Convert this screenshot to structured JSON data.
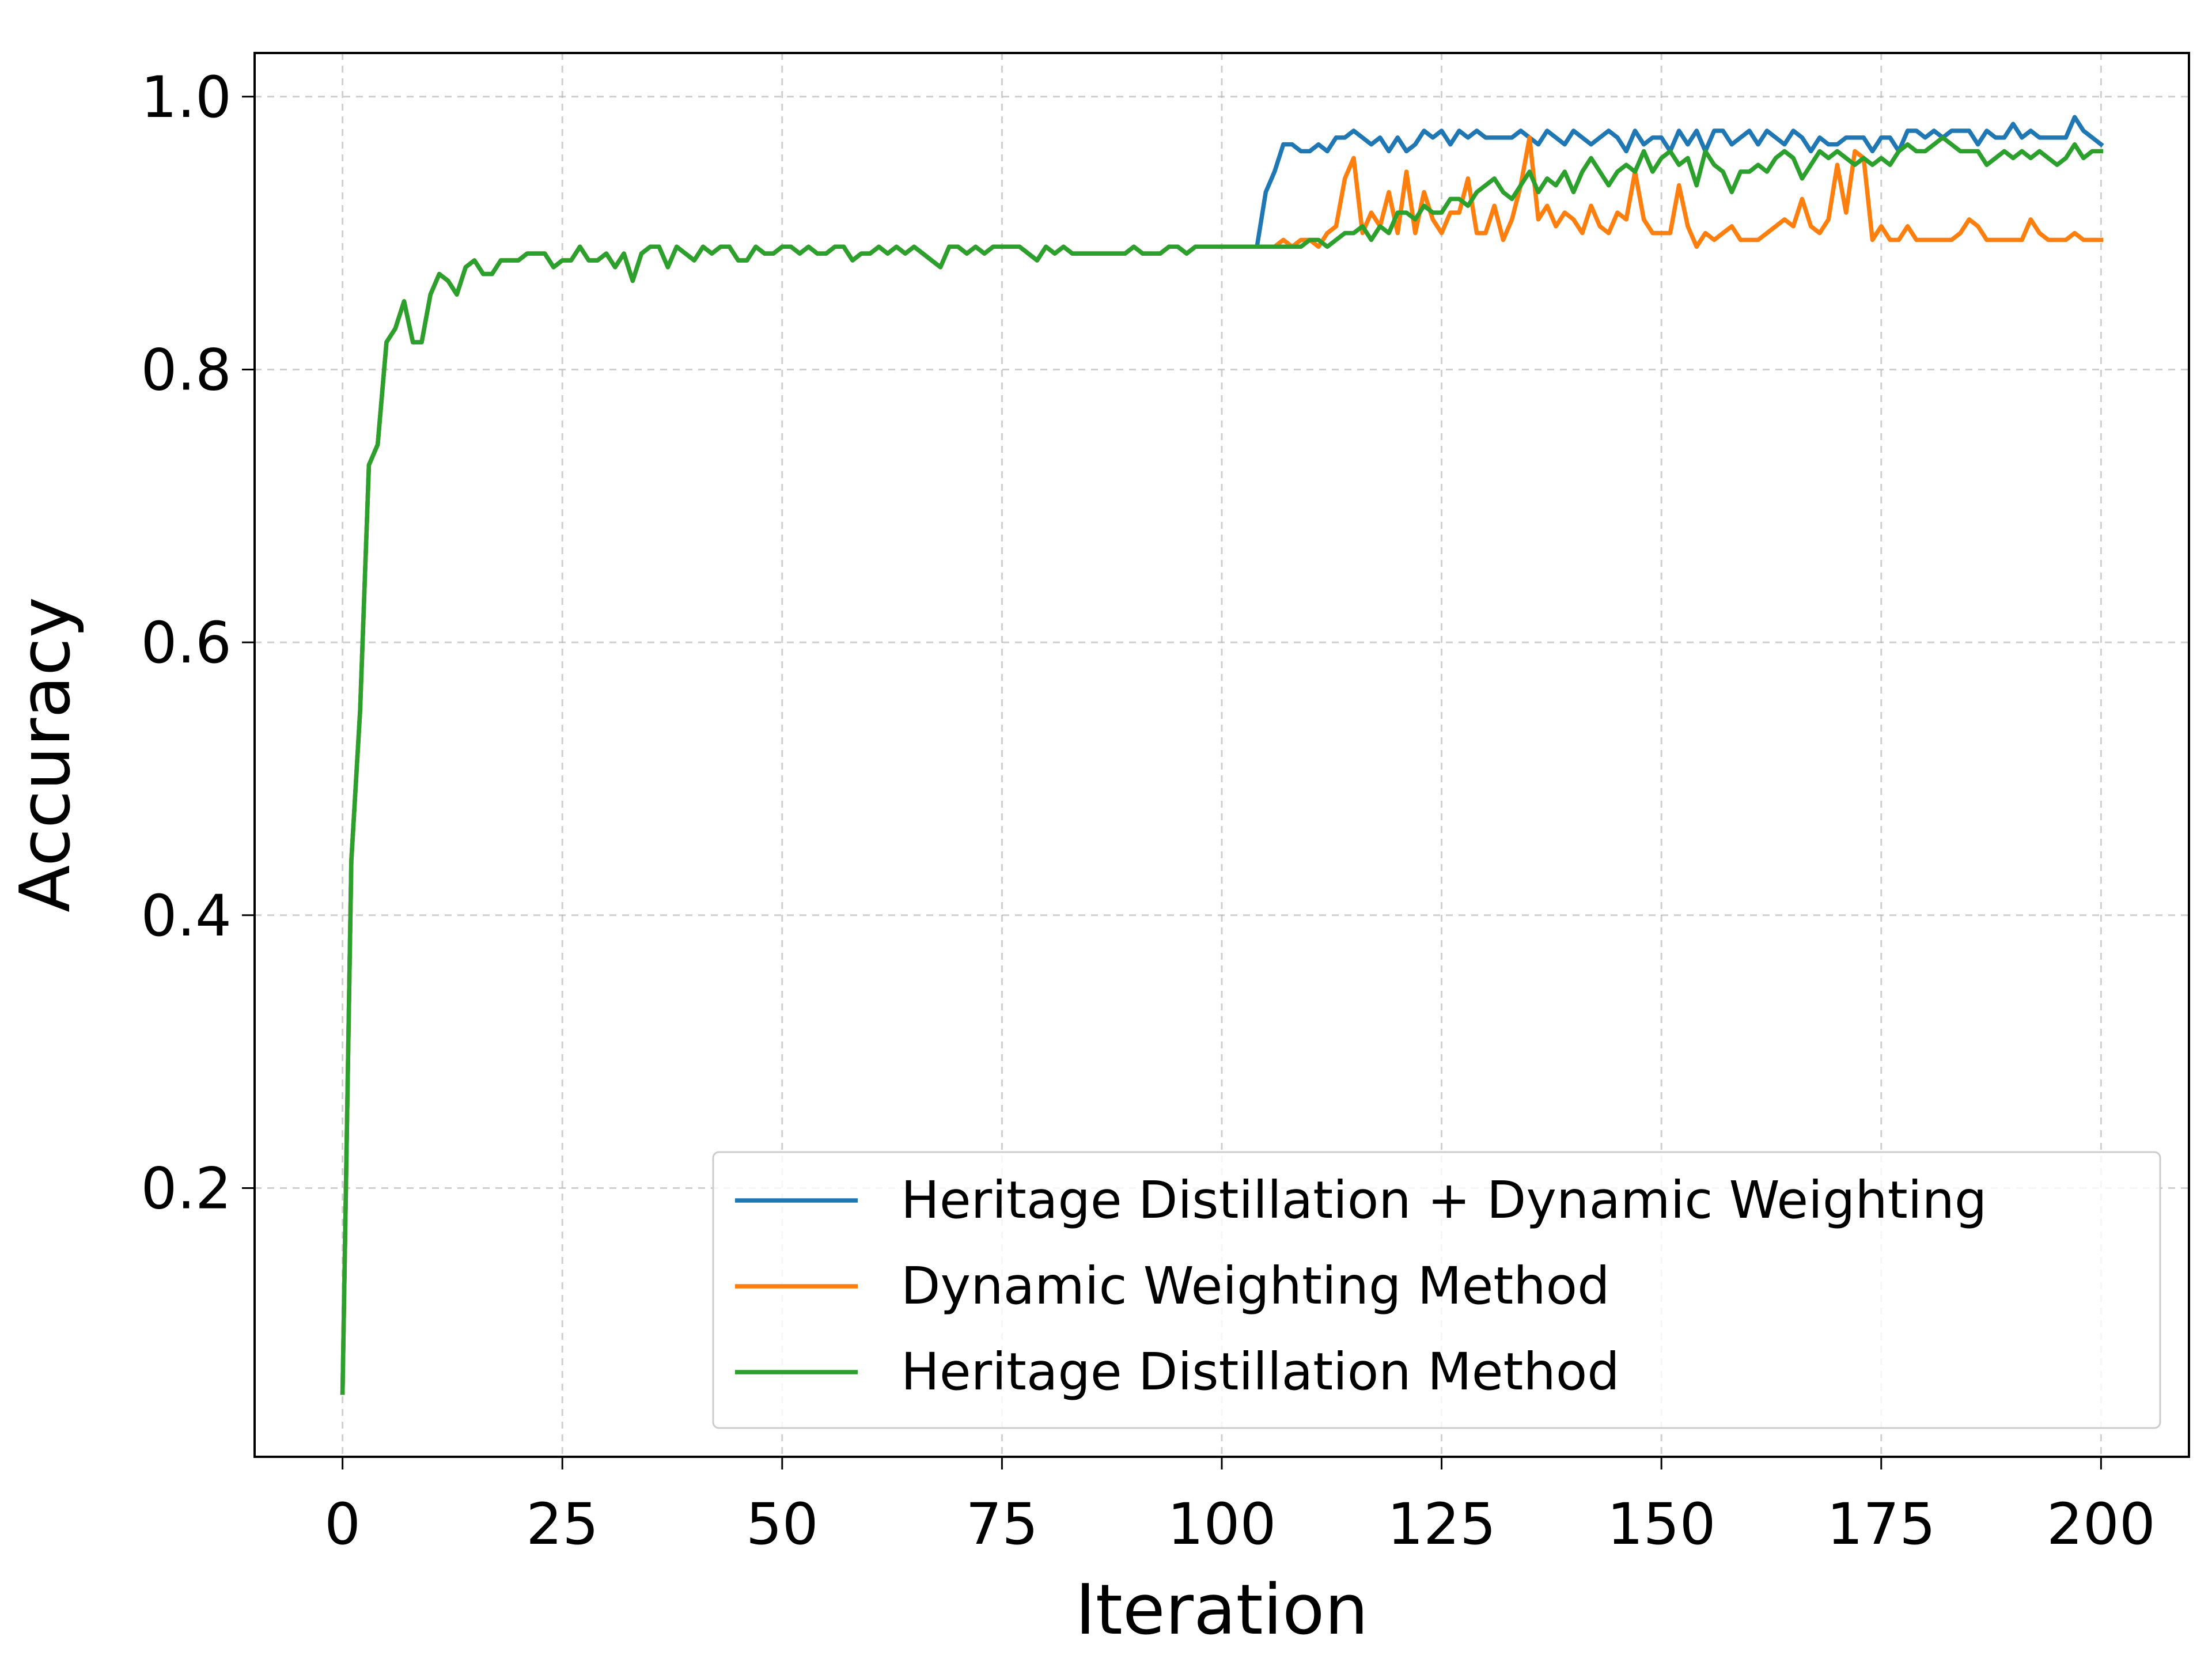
{
  "chart_data": {
    "type": "line",
    "xlabel": "Iteration",
    "ylabel": "Accuracy",
    "xlim": [
      -10,
      210
    ],
    "ylim": [
      0.003,
      1.032
    ],
    "xticks": [
      0,
      25,
      50,
      75,
      100,
      125,
      150,
      175,
      200
    ],
    "yticks": [
      0.2,
      0.4,
      0.6,
      0.8,
      {
        "value": 1,
        "label": "1.0"
      }
    ],
    "grid": true,
    "legend": "lower right",
    "x": [
      0,
      1,
      2,
      3,
      4,
      5,
      6,
      7,
      8,
      9,
      10,
      11,
      12,
      13,
      14,
      15,
      16,
      17,
      18,
      19,
      20,
      21,
      22,
      23,
      24,
      25,
      26,
      27,
      28,
      29,
      30,
      31,
      32,
      33,
      34,
      35,
      36,
      37,
      38,
      39,
      40,
      41,
      42,
      43,
      44,
      45,
      46,
      47,
      48,
      49,
      50,
      51,
      52,
      53,
      54,
      55,
      56,
      57,
      58,
      59,
      60,
      61,
      62,
      63,
      64,
      65,
      66,
      67,
      68,
      69,
      70,
      71,
      72,
      73,
      74,
      75,
      76,
      77,
      78,
      79,
      80,
      81,
      82,
      83,
      84,
      85,
      86,
      87,
      88,
      89,
      90,
      91,
      92,
      93,
      94,
      95,
      96,
      97,
      98,
      99,
      100,
      101,
      102,
      103,
      104,
      105,
      106,
      107,
      108,
      109,
      110,
      111,
      112,
      113,
      114,
      115,
      116,
      117,
      118,
      119,
      120,
      121,
      122,
      123,
      124,
      125,
      126,
      127,
      128,
      129,
      130,
      131,
      132,
      133,
      134,
      135,
      136,
      137,
      138,
      139,
      140,
      141,
      142,
      143,
      144,
      145,
      146,
      147,
      148,
      149,
      150,
      151,
      152,
      153,
      154,
      155,
      156,
      157,
      158,
      159,
      160,
      161,
      162,
      163,
      164,
      165,
      166,
      167,
      168,
      169,
      170,
      171,
      172,
      173,
      174,
      175,
      176,
      177,
      178,
      179,
      180,
      181,
      182,
      183,
      184,
      185,
      186,
      187,
      188,
      189,
      190,
      191,
      192,
      193,
      194,
      195,
      196,
      197,
      198,
      199,
      200
    ],
    "series": [
      {
        "name": "Heritage Distillation + Dynamic Weighting",
        "color": "#1f77b4",
        "values": [
          0.05,
          0.44,
          0.55,
          0.73,
          0.745,
          0.82,
          0.83,
          0.85,
          0.82,
          0.82,
          0.855,
          0.87,
          0.865,
          0.855,
          0.875,
          0.88,
          0.87,
          0.87,
          0.88,
          0.88,
          0.88,
          0.885,
          0.885,
          0.885,
          0.875,
          0.88,
          0.88,
          0.89,
          0.88,
          0.88,
          0.885,
          0.875,
          0.885,
          0.865,
          0.885,
          0.89,
          0.89,
          0.875,
          0.89,
          0.885,
          0.88,
          0.89,
          0.885,
          0.89,
          0.89,
          0.88,
          0.88,
          0.89,
          0.885,
          0.885,
          0.89,
          0.89,
          0.885,
          0.89,
          0.885,
          0.885,
          0.89,
          0.89,
          0.88,
          0.885,
          0.885,
          0.89,
          0.885,
          0.89,
          0.885,
          0.89,
          0.885,
          0.88,
          0.875,
          0.89,
          0.89,
          0.885,
          0.89,
          0.885,
          0.89,
          0.89,
          0.89,
          0.89,
          0.885,
          0.88,
          0.89,
          0.885,
          0.89,
          0.885,
          0.885,
          0.885,
          0.885,
          0.885,
          0.885,
          0.885,
          0.89,
          0.885,
          0.885,
          0.885,
          0.89,
          0.89,
          0.885,
          0.89,
          0.89,
          0.89,
          0.89,
          0.89,
          0.89,
          0.89,
          0.89,
          0.93,
          0.945,
          0.965,
          0.965,
          0.96,
          0.96,
          0.965,
          0.96,
          0.97,
          0.97,
          0.975,
          0.97,
          0.965,
          0.97,
          0.96,
          0.97,
          0.96,
          0.965,
          0.975,
          0.97,
          0.975,
          0.965,
          0.975,
          0.97,
          0.975,
          0.97,
          0.97,
          0.97,
          0.97,
          0.975,
          0.97,
          0.965,
          0.975,
          0.97,
          0.965,
          0.975,
          0.97,
          0.965,
          0.97,
          0.975,
          0.97,
          0.96,
          0.975,
          0.965,
          0.97,
          0.97,
          0.96,
          0.975,
          0.965,
          0.975,
          0.96,
          0.975,
          0.975,
          0.965,
          0.97,
          0.975,
          0.965,
          0.975,
          0.97,
          0.965,
          0.975,
          0.97,
          0.96,
          0.97,
          0.965,
          0.965,
          0.97,
          0.97,
          0.97,
          0.96,
          0.97,
          0.97,
          0.96,
          0.975,
          0.975,
          0.97,
          0.975,
          0.97,
          0.975,
          0.975,
          0.975,
          0.965,
          0.975,
          0.97,
          0.97,
          0.98,
          0.97,
          0.975,
          0.97,
          0.97,
          0.97,
          0.97,
          0.985,
          0.975,
          0.97,
          0.965
        ]
      },
      {
        "name": "Dynamic Weighting Method",
        "color": "#ff7f0e",
        "values": [
          0.05,
          0.44,
          0.55,
          0.73,
          0.745,
          0.82,
          0.83,
          0.85,
          0.82,
          0.82,
          0.855,
          0.87,
          0.865,
          0.855,
          0.875,
          0.88,
          0.87,
          0.87,
          0.88,
          0.88,
          0.88,
          0.885,
          0.885,
          0.885,
          0.875,
          0.88,
          0.88,
          0.89,
          0.88,
          0.88,
          0.885,
          0.875,
          0.885,
          0.865,
          0.885,
          0.89,
          0.89,
          0.875,
          0.89,
          0.885,
          0.88,
          0.89,
          0.885,
          0.89,
          0.89,
          0.88,
          0.88,
          0.89,
          0.885,
          0.885,
          0.89,
          0.89,
          0.885,
          0.89,
          0.885,
          0.885,
          0.89,
          0.89,
          0.88,
          0.885,
          0.885,
          0.89,
          0.885,
          0.89,
          0.885,
          0.89,
          0.885,
          0.88,
          0.875,
          0.89,
          0.89,
          0.885,
          0.89,
          0.885,
          0.89,
          0.89,
          0.89,
          0.89,
          0.885,
          0.88,
          0.89,
          0.885,
          0.89,
          0.885,
          0.885,
          0.885,
          0.885,
          0.885,
          0.885,
          0.885,
          0.89,
          0.885,
          0.885,
          0.885,
          0.89,
          0.89,
          0.885,
          0.89,
          0.89,
          0.89,
          0.89,
          0.89,
          0.89,
          0.89,
          0.89,
          0.89,
          0.89,
          0.895,
          0.89,
          0.895,
          0.895,
          0.89,
          0.9,
          0.905,
          0.94,
          0.955,
          0.9,
          0.915,
          0.905,
          0.93,
          0.9,
          0.945,
          0.9,
          0.93,
          0.91,
          0.9,
          0.915,
          0.915,
          0.94,
          0.9,
          0.9,
          0.92,
          0.895,
          0.91,
          0.935,
          0.97,
          0.91,
          0.92,
          0.905,
          0.915,
          0.91,
          0.9,
          0.92,
          0.905,
          0.9,
          0.915,
          0.91,
          0.945,
          0.91,
          0.9,
          0.9,
          0.9,
          0.935,
          0.905,
          0.89,
          0.9,
          0.895,
          0.9,
          0.905,
          0.895,
          0.895,
          0.895,
          0.9,
          0.905,
          0.91,
          0.905,
          0.925,
          0.905,
          0.9,
          0.91,
          0.95,
          0.915,
          0.96,
          0.955,
          0.895,
          0.905,
          0.895,
          0.895,
          0.905,
          0.895,
          0.895,
          0.895,
          0.895,
          0.895,
          0.9,
          0.91,
          0.905,
          0.895,
          0.895,
          0.895,
          0.895,
          0.895,
          0.91,
          0.9,
          0.895,
          0.895,
          0.895,
          0.9,
          0.895,
          0.895,
          0.895
        ]
      },
      {
        "name": "Heritage Distillation Method",
        "color": "#2ca02c",
        "values": [
          0.05,
          0.44,
          0.55,
          0.73,
          0.745,
          0.82,
          0.83,
          0.85,
          0.82,
          0.82,
          0.855,
          0.87,
          0.865,
          0.855,
          0.875,
          0.88,
          0.87,
          0.87,
          0.88,
          0.88,
          0.88,
          0.885,
          0.885,
          0.885,
          0.875,
          0.88,
          0.88,
          0.89,
          0.88,
          0.88,
          0.885,
          0.875,
          0.885,
          0.865,
          0.885,
          0.89,
          0.89,
          0.875,
          0.89,
          0.885,
          0.88,
          0.89,
          0.885,
          0.89,
          0.89,
          0.88,
          0.88,
          0.89,
          0.885,
          0.885,
          0.89,
          0.89,
          0.885,
          0.89,
          0.885,
          0.885,
          0.89,
          0.89,
          0.88,
          0.885,
          0.885,
          0.89,
          0.885,
          0.89,
          0.885,
          0.89,
          0.885,
          0.88,
          0.875,
          0.89,
          0.89,
          0.885,
          0.89,
          0.885,
          0.89,
          0.89,
          0.89,
          0.89,
          0.885,
          0.88,
          0.89,
          0.885,
          0.89,
          0.885,
          0.885,
          0.885,
          0.885,
          0.885,
          0.885,
          0.885,
          0.89,
          0.885,
          0.885,
          0.885,
          0.89,
          0.89,
          0.885,
          0.89,
          0.89,
          0.89,
          0.89,
          0.89,
          0.89,
          0.89,
          0.89,
          0.89,
          0.89,
          0.89,
          0.89,
          0.89,
          0.895,
          0.895,
          0.89,
          0.895,
          0.9,
          0.9,
          0.905,
          0.895,
          0.905,
          0.9,
          0.915,
          0.915,
          0.91,
          0.92,
          0.915,
          0.915,
          0.925,
          0.925,
          0.92,
          0.93,
          0.935,
          0.94,
          0.93,
          0.925,
          0.935,
          0.945,
          0.93,
          0.94,
          0.935,
          0.945,
          0.93,
          0.945,
          0.955,
          0.945,
          0.935,
          0.945,
          0.95,
          0.945,
          0.96,
          0.945,
          0.955,
          0.96,
          0.95,
          0.955,
          0.935,
          0.96,
          0.95,
          0.945,
          0.93,
          0.945,
          0.945,
          0.95,
          0.945,
          0.955,
          0.96,
          0.955,
          0.94,
          0.95,
          0.96,
          0.955,
          0.96,
          0.955,
          0.95,
          0.955,
          0.95,
          0.955,
          0.95,
          0.96,
          0.965,
          0.96,
          0.96,
          0.965,
          0.97,
          0.965,
          0.96,
          0.96,
          0.96,
          0.95,
          0.955,
          0.96,
          0.955,
          0.96,
          0.955,
          0.96,
          0.955,
          0.95,
          0.955,
          0.965,
          0.955,
          0.96,
          0.96
        ]
      }
    ]
  }
}
